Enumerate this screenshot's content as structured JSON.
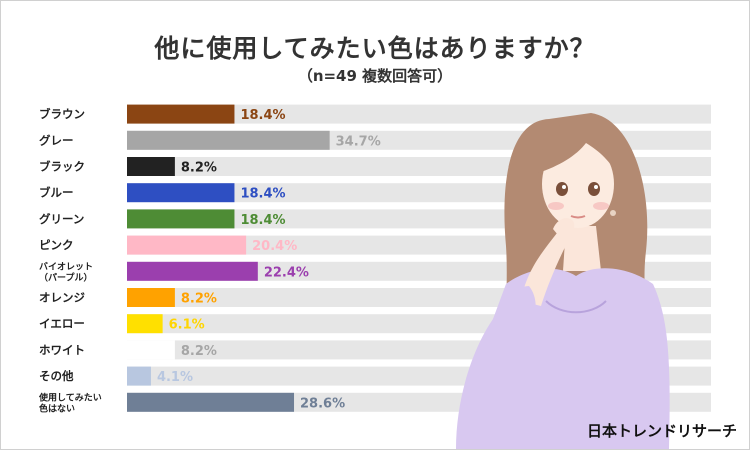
{
  "title": "他に使用してみたい色はありますか？",
  "subtitle": "（n=49 複数回答可）",
  "brand": "日本トレンドリサーチ",
  "chart_data": {
    "type": "bar",
    "orientation": "horizontal",
    "xlim": [
      0,
      100
    ],
    "categories": [
      [
        "ブラウン"
      ],
      [
        "グレー"
      ],
      [
        "ブラック"
      ],
      [
        "ブルー"
      ],
      [
        "グリーン"
      ],
      [
        "ピンク"
      ],
      [
        "バイオレット",
        "（パープル）"
      ],
      [
        "オレンジ"
      ],
      [
        "イエロー"
      ],
      [
        "ホワイト"
      ],
      [
        "その他"
      ],
      [
        "使用してみたい",
        "色はない"
      ]
    ],
    "values": [
      18.4,
      34.7,
      8.2,
      18.4,
      18.4,
      20.4,
      22.4,
      8.2,
      6.1,
      8.2,
      4.1,
      28.6
    ],
    "value_labels": [
      "18.4%",
      "34.7%",
      "8.2%",
      "18.4%",
      "18.4%",
      "20.4%",
      "22.4%",
      "8.2%",
      "6.1%",
      "8.2%",
      "4.1%",
      "28.6%"
    ],
    "bar_colors": [
      "#8b4513",
      "#a6a6a6",
      "#222222",
      "#2e4fc2",
      "#4e8c35",
      "#ffb8c6",
      "#9b3fae",
      "#ffa200",
      "#ffe000",
      "#ffffff",
      "#b8c7e0",
      "#6f7f96"
    ],
    "label_colors": [
      "#8b4513",
      "#a6a6a6",
      "#222222",
      "#2e4fc2",
      "#4e8c35",
      "#ffb8c6",
      "#9b3fae",
      "#ffa200",
      "#ffd500",
      "#a6a6a6",
      "#b8c7e0",
      "#6f7f96"
    ],
    "track_color": "#e6e6e6"
  }
}
